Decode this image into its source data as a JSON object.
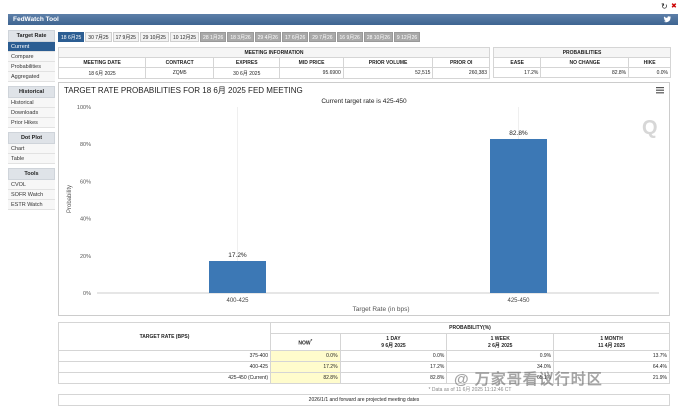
{
  "app": {
    "title": "FedWatch Tool"
  },
  "sidebar": {
    "sections": [
      {
        "heading": "Target Rate",
        "items": [
          "Current",
          "Compare",
          "Probabilities",
          "Aggregated"
        ],
        "active": 0
      },
      {
        "heading": "Historical",
        "items": [
          "Historical",
          "Downloads",
          "Prior Hikes"
        ]
      },
      {
        "heading": "Dot Plot",
        "items": [
          "Chart",
          "Table"
        ]
      },
      {
        "heading": "Tools",
        "items": [
          "CVOL",
          "SOFR Watch",
          "ESTR Watch"
        ]
      }
    ]
  },
  "tabs": [
    {
      "label": "18 6月25",
      "state": "active"
    },
    {
      "label": "30 7月25",
      "state": "normal"
    },
    {
      "label": "17 9月25",
      "state": "normal"
    },
    {
      "label": "29 10月25",
      "state": "normal"
    },
    {
      "label": "10 12月25",
      "state": "normal"
    },
    {
      "label": "28 1月26",
      "state": "gray"
    },
    {
      "label": "18 3月26",
      "state": "gray"
    },
    {
      "label": "29 4月26",
      "state": "gray"
    },
    {
      "label": "17 6月26",
      "state": "gray"
    },
    {
      "label": "29 7月26",
      "state": "gray"
    },
    {
      "label": "16 9月26",
      "state": "gray"
    },
    {
      "label": "28 10月26",
      "state": "gray"
    },
    {
      "label": "9 12月26",
      "state": "gray"
    }
  ],
  "meeting_info": {
    "title": "MEETING INFORMATION",
    "headers": [
      "MEETING DATE",
      "CONTRACT",
      "EXPIRES",
      "MID PRICE",
      "PRIOR VOLUME",
      "PRIOR OI"
    ],
    "values": [
      "18 6月 2025",
      "ZQM5",
      "30 6月 2025",
      "95.6900",
      "52,515",
      "260,383"
    ]
  },
  "probabilities_summary": {
    "title": "PROBABILITIES",
    "headers": [
      "EASE",
      "NO CHANGE",
      "HIKE"
    ],
    "values": [
      "17.2%",
      "82.8%",
      "0.0%"
    ]
  },
  "chart": {
    "menu_icon": "hamburger-menu-icon",
    "watermark_letter": "Q"
  },
  "chart_data": {
    "type": "bar",
    "title": "TARGET RATE PROBABILITIES FOR 18 6月 2025 FED MEETING",
    "subtitle": "Current target rate is 425-450",
    "categories": [
      "400-425",
      "425-450"
    ],
    "values": [
      17.2,
      82.8
    ],
    "value_labels": [
      "17.2%",
      "82.8%"
    ],
    "xlabel": "Target Rate (in bps)",
    "ylabel": "Probability",
    "ylim": [
      0,
      100
    ],
    "yticks": [
      "0%",
      "20%",
      "40%",
      "60%",
      "80%",
      "100%"
    ],
    "grid": false,
    "bar_color": "#3c78b5"
  },
  "bottom_table": {
    "col0_header": "TARGET RATE (BPS)",
    "group_header": "PROBABILITY(%)",
    "headers": [
      {
        "title": "NOW",
        "sup": "*",
        "sub": ""
      },
      {
        "title": "1 DAY",
        "sub": "9 6月 2025"
      },
      {
        "title": "1 WEEK",
        "sub": "2 6月 2025"
      },
      {
        "title": "1 MONTH",
        "sub": "11 4月 2025"
      }
    ],
    "rows": [
      {
        "rate": "375-400",
        "values": [
          "0.0%",
          "0.0%",
          "0.9%",
          "13.7%"
        ]
      },
      {
        "rate": "400-425",
        "values": [
          "17.2%",
          "17.2%",
          "34.0%",
          "64.4%"
        ]
      },
      {
        "rate": "425-450 (Current)",
        "values": [
          "82.8%",
          "82.8%",
          "65.1%",
          "21.9%"
        ]
      }
    ],
    "note": "* Data as of 11 6月 2025 11:12:46 CT",
    "footer": "2026/1/1 and forward are projected meeting dates"
  },
  "overlay_watermark": "@ 万家哥看议行时区"
}
